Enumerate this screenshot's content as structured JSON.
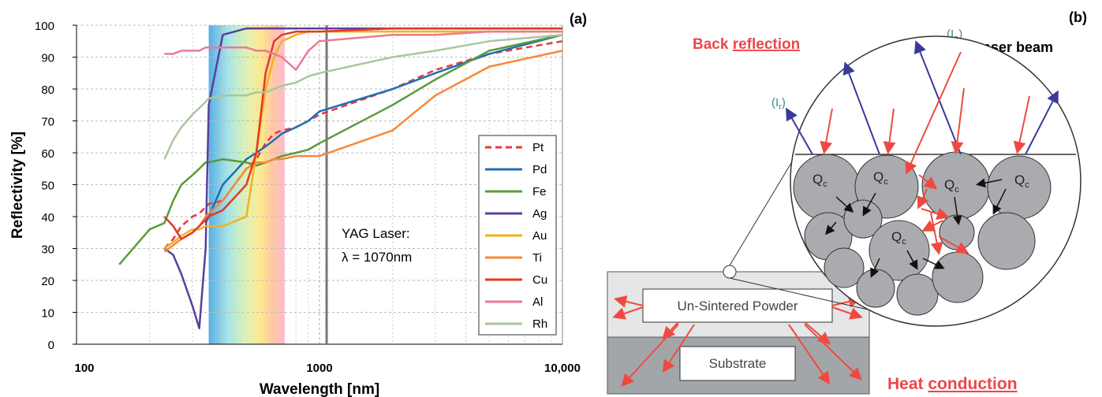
{
  "chart_data": {
    "type": "line",
    "panel_label": "(a)",
    "x_label": "Wavelength [nm]",
    "y_label": "Reflectivity [%]",
    "xscale": "log",
    "xlim": [
      100,
      10000
    ],
    "xticks": [
      100,
      1000,
      {
        "value": 10000,
        "label": "10,000"
      }
    ],
    "ylim": [
      0,
      100
    ],
    "yticks": [
      0,
      10,
      20,
      30,
      40,
      50,
      60,
      70,
      80,
      90,
      100
    ],
    "grid": true,
    "legend": "lower right",
    "visible_band": [
      350,
      720
    ],
    "marker_x": 1070,
    "annotation": [
      "YAG Laser:",
      "λ = 1070nm"
    ],
    "x": [
      150,
      200,
      230,
      250,
      270,
      300,
      320,
      340,
      350,
      400,
      500,
      550,
      600,
      650,
      700,
      800,
      900,
      1000,
      2000,
      3000,
      5000,
      10000
    ],
    "series": [
      {
        "name": "Pt",
        "color": "#e8393e",
        "style": "dashed",
        "values": [
          null,
          null,
          30,
          33,
          37,
          40,
          41,
          43,
          44,
          45,
          55,
          58,
          63,
          66,
          67,
          68,
          70,
          72,
          80,
          86,
          91,
          95
        ]
      },
      {
        "name": "Pd",
        "color": "#1f6fb5",
        "values": [
          null,
          null,
          null,
          null,
          null,
          null,
          null,
          38,
          40,
          50,
          58,
          60,
          62,
          64,
          66,
          68,
          70,
          73,
          80,
          85,
          91,
          97
        ]
      },
      {
        "name": "Fe",
        "color": "#5a9b3a",
        "values": [
          25,
          36,
          38,
          45,
          50,
          53,
          55,
          57,
          57,
          58,
          57,
          56,
          57,
          58,
          59,
          60,
          61,
          63,
          75,
          83,
          92,
          97
        ]
      },
      {
        "name": "Ag",
        "color": "#5b3f99",
        "values": [
          null,
          null,
          30,
          28,
          22,
          12,
          5,
          30,
          75,
          97,
          99,
          99,
          99,
          99,
          99,
          99,
          99,
          99,
          99,
          99,
          99,
          99
        ]
      },
      {
        "name": "Au",
        "color": "#f5b21c",
        "values": [
          null,
          null,
          30,
          32,
          34,
          36,
          36,
          37,
          37,
          37,
          40,
          60,
          80,
          90,
          95,
          97,
          98,
          98,
          98,
          98,
          98,
          98
        ]
      },
      {
        "name": "Ti",
        "color": "#f5893a",
        "values": [
          null,
          null,
          29,
          31,
          33,
          35,
          37,
          40,
          41,
          45,
          55,
          57,
          57,
          58,
          58,
          59,
          59,
          59,
          67,
          78,
          87,
          92
        ]
      },
      {
        "name": "Cu",
        "color": "#e23a26",
        "values": [
          null,
          null,
          40,
          37,
          33,
          35,
          37,
          39,
          40,
          42,
          50,
          60,
          85,
          95,
          97,
          98,
          98,
          98,
          99,
          99,
          99,
          99
        ]
      },
      {
        "name": "Al",
        "color": "#ea7a93",
        "values": [
          null,
          null,
          91,
          91,
          92,
          92,
          92,
          93,
          93,
          93,
          93,
          92,
          92,
          91,
          90,
          86,
          92,
          95,
          97,
          97,
          98,
          98
        ]
      },
      {
        "name": "Rh",
        "color": "#a9c79c",
        "values": [
          null,
          null,
          58,
          64,
          68,
          72,
          74,
          76,
          77,
          78,
          78,
          79,
          79,
          80,
          81,
          82,
          84,
          85,
          90,
          92,
          95,
          97
        ]
      }
    ]
  },
  "diagram": {
    "panel_label": "(b)",
    "back": "Back",
    "reflection": "reflection",
    "incident": {
      "open": "(I",
      "sub": "o",
      "close": ")"
    },
    "reflected": {
      "open": "(I",
      "sub": "r",
      "close": ")"
    },
    "laser_beam": "Laser beam",
    "particle": {
      "main": "Q",
      "sub": "c"
    },
    "powder": "Un-Sintered Powder",
    "substrate": "Substrate",
    "heat": "Heat",
    "conduction": "conduction"
  }
}
